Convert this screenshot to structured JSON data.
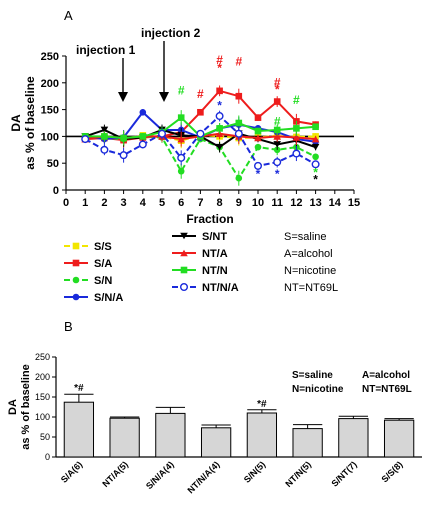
{
  "panel_a": {
    "letter": "A",
    "injection1": "injection 1",
    "injection2": "injection 2",
    "legend_col1": [
      {
        "label": "S/S",
        "color": "#f2e600",
        "marker": "square",
        "dash": "dash"
      },
      {
        "label": "S/A",
        "color": "#ee1c1c",
        "marker": "square",
        "dash": "solid"
      },
      {
        "label": "S/N",
        "color": "#22dd22",
        "marker": "circle",
        "dash": "dash"
      },
      {
        "label": "S/N/A",
        "color": "#1a2adb",
        "marker": "circle",
        "dash": "solid"
      }
    ],
    "legend_col2": [
      {
        "label": "S/NT",
        "color": "#000000",
        "marker": "tri-down",
        "dash": "solid"
      },
      {
        "label": "NT/A",
        "color": "#ee1c1c",
        "marker": "tri-up",
        "dash": "solid"
      },
      {
        "label": "NT/N",
        "color": "#22dd22",
        "marker": "square",
        "dash": "solid"
      },
      {
        "label": "NT/N/A",
        "color": "#1a2adb",
        "marker": "open-circle",
        "dash": "dash"
      }
    ],
    "abbrev": [
      "S=saline",
      "A=alcohol",
      "N=nicotine",
      "NT=NT69L"
    ]
  },
  "panel_b": {
    "letter": "B",
    "abbrev_row1": [
      "S=saline",
      "A=alcohol"
    ],
    "abbrev_row2": [
      "N=nicotine",
      "NT=NT69L"
    ]
  },
  "chart_data": [
    {
      "type": "line",
      "title": "",
      "xlabel": "Fraction",
      "ylabel": "DA\nas % of baseline",
      "xlim": [
        0,
        15
      ],
      "ylim": [
        0,
        250
      ],
      "x_ticks": [
        0,
        1,
        2,
        3,
        4,
        5,
        6,
        7,
        8,
        9,
        10,
        11,
        12,
        13,
        14,
        15
      ],
      "y_ticks": [
        0,
        50,
        100,
        150,
        200,
        250
      ],
      "reference_line": 100,
      "x": [
        1,
        2,
        3,
        4,
        5,
        6,
        7,
        8,
        9,
        10,
        11,
        12,
        13
      ],
      "series": [
        {
          "name": "S/S",
          "color": "#f2e600",
          "dash": "dash",
          "marker": "square",
          "values": [
            98,
            100,
            95,
            102,
            100,
            92,
            103,
            100,
            97,
            98,
            101,
            99,
            100
          ]
        },
        {
          "name": "S/A",
          "color": "#ee1c1c",
          "dash": "solid",
          "marker": "square",
          "values": [
            95,
            97,
            93,
            98,
            100,
            108,
            145,
            185,
            175,
            135,
            165,
            128,
            122
          ]
        },
        {
          "name": "S/N",
          "color": "#22dd22",
          "dash": "dash",
          "marker": "circle",
          "values": [
            97,
            97,
            95,
            100,
            98,
            35,
            95,
            80,
            22,
            80,
            75,
            80,
            62
          ]
        },
        {
          "name": "S/N/A",
          "color": "#1a2adb",
          "dash": "solid",
          "marker": "circle",
          "values": [
            100,
            95,
            98,
            145,
            112,
            112,
            98,
            115,
            122,
            115,
            108,
            95,
            90
          ]
        },
        {
          "name": "S/NT",
          "color": "#000000",
          "dash": "solid",
          "marker": "tri-down",
          "values": [
            100,
            112,
            95,
            98,
            112,
            102,
            100,
            80,
            105,
            95,
            85,
            92,
            80
          ]
        },
        {
          "name": "NT/A",
          "color": "#ee1c1c",
          "dash": "solid",
          "marker": "tri-up",
          "values": [
            95,
            100,
            97,
            100,
            100,
            95,
            100,
            105,
            100,
            97,
            100,
            98,
            95
          ]
        },
        {
          "name": "NT/N",
          "color": "#22dd22",
          "dash": "solid",
          "marker": "square",
          "values": [
            100,
            100,
            97,
            100,
            108,
            135,
            100,
            115,
            125,
            110,
            112,
            115,
            118
          ]
        },
        {
          "name": "NT/N/A",
          "color": "#1a2adb",
          "dash": "dash",
          "marker": "open-circle",
          "values": [
            95,
            75,
            65,
            85,
            105,
            60,
            105,
            138,
            105,
            45,
            52,
            68,
            48
          ]
        }
      ],
      "annotations": [
        {
          "x": 6,
          "y": 178,
          "text": "#",
          "color": "#22dd22"
        },
        {
          "x": 7,
          "y": 172,
          "text": "#",
          "color": "#ee1c1c"
        },
        {
          "x": 8,
          "y": 235,
          "text": "#",
          "color": "#ee1c1c"
        },
        {
          "x": 8,
          "y": 220,
          "text": "*",
          "color": "#ee1c1c"
        },
        {
          "x": 9,
          "y": 232,
          "text": "#",
          "color": "#ee1c1c"
        },
        {
          "x": 8,
          "y": 150,
          "text": "*",
          "color": "#1a2adb"
        },
        {
          "x": 11,
          "y": 193,
          "text": "#",
          "color": "#ee1c1c"
        },
        {
          "x": 11,
          "y": 180,
          "text": "*",
          "color": "#ee1c1c"
        },
        {
          "x": 11,
          "y": 120,
          "text": "#",
          "color": "#22dd22"
        },
        {
          "x": 12,
          "y": 160,
          "text": "#",
          "color": "#22dd22"
        },
        {
          "x": 10,
          "y": 22,
          "text": "*",
          "color": "#1a2adb"
        },
        {
          "x": 11,
          "y": 22,
          "text": "*",
          "color": "#1a2adb"
        },
        {
          "x": 13,
          "y": 25,
          "text": "*",
          "color": "#22dd22"
        },
        {
          "x": 13,
          "y": 12,
          "text": "*",
          "color": "#000000"
        }
      ]
    },
    {
      "type": "bar",
      "title": "",
      "xlabel": "",
      "ylabel": "DA\nas % of baseline",
      "ylim": [
        0,
        250
      ],
      "y_ticks": [
        0,
        50,
        100,
        150,
        200,
        250
      ],
      "categories": [
        "S/A(6)",
        "NT/A(5)",
        "S/N/A(4)",
        "NT/N/A(4)",
        "S/N(5)",
        "NT/N(5)",
        "S/NT(7)",
        "S/S(8)"
      ],
      "values": [
        137,
        97,
        109,
        73,
        110,
        71,
        96,
        92
      ],
      "errors": [
        20,
        3,
        15,
        7,
        8,
        10,
        6,
        4
      ],
      "bar_color": "#d6d6d6",
      "annotations": [
        {
          "category": "S/A(6)",
          "text": "*#"
        },
        {
          "category": "S/N(5)",
          "text": "*#"
        }
      ]
    }
  ]
}
